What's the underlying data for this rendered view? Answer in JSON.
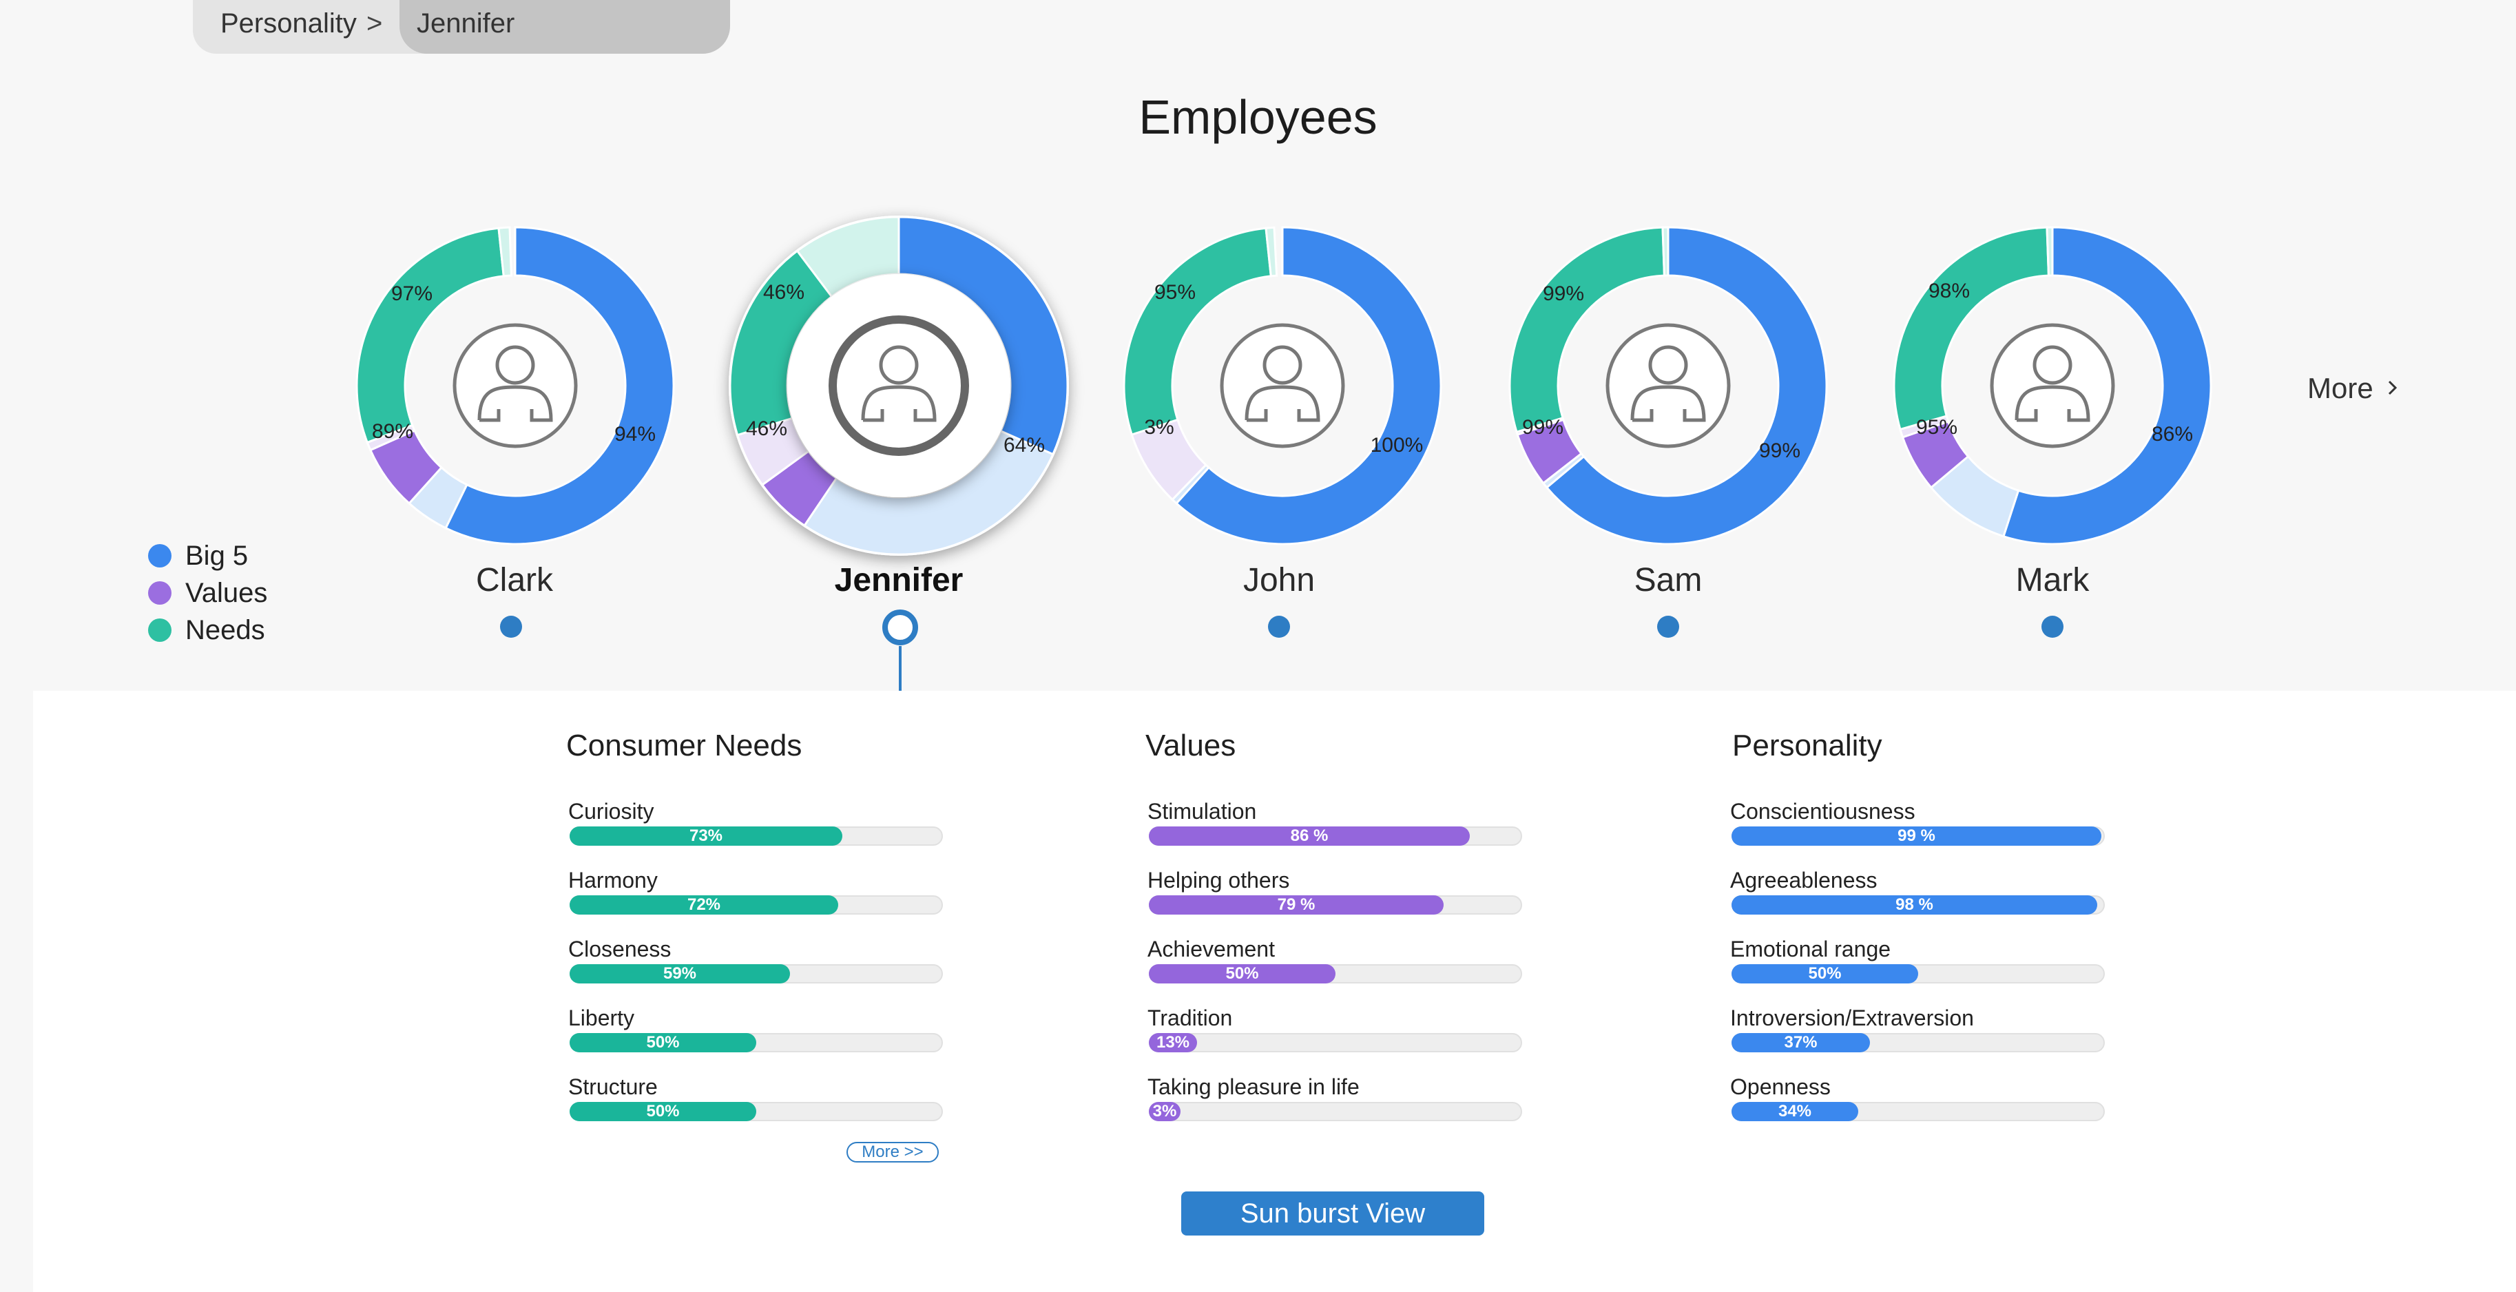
{
  "breadcrumb": {
    "items": [
      "Personality",
      "Jennifer"
    ],
    "separator": ">"
  },
  "page_title": "Employees",
  "legend": [
    {
      "label": "Big 5",
      "color": "#3b88ee"
    },
    {
      "label": "Values",
      "color": "#9b6ee0"
    },
    {
      "label": "Needs",
      "color": "#2ec0a2"
    }
  ],
  "colors": {
    "big5": "#3b88ee",
    "big5_light": "#d6e8fb",
    "values": "#9b6ee0",
    "values_light": "#ece4f8",
    "needs": "#2ec0a2",
    "needs_light": "#d2f3ec",
    "accent": "#2e7dc4"
  },
  "employees": [
    {
      "name": "Clark",
      "selected": false,
      "big5": "94%",
      "values": "89%",
      "needs": "97%"
    },
    {
      "name": "Jennifer",
      "selected": true,
      "big5": "64%",
      "values": "46%",
      "needs": "46%"
    },
    {
      "name": "John",
      "selected": false,
      "big5": "100%",
      "values": "3%",
      "needs": "95%"
    },
    {
      "name": "Sam",
      "selected": false,
      "big5": "99%",
      "values": "99%",
      "needs": "99%"
    },
    {
      "name": "Mark",
      "selected": false,
      "big5": "86%",
      "values": "95%",
      "needs": "98%"
    }
  ],
  "more_label": "More",
  "details": {
    "needs": {
      "title": "Consumer Needs",
      "items": [
        {
          "label": "Curiosity",
          "value": 0.73,
          "text": "73%"
        },
        {
          "label": "Harmony",
          "value": 0.72,
          "text": "72%"
        },
        {
          "label": "Closeness",
          "value": 0.59,
          "text": "59%"
        },
        {
          "label": "Liberty",
          "value": 0.5,
          "text": "50%"
        },
        {
          "label": "Structure",
          "value": 0.5,
          "text": "50%"
        }
      ],
      "more_button": "More >>"
    },
    "values": {
      "title": "Values",
      "items": [
        {
          "label": "Stimulation",
          "value": 0.86,
          "text": "86 %"
        },
        {
          "label": "Helping others",
          "value": 0.79,
          "text": "79 %"
        },
        {
          "label": "Achievement",
          "value": 0.5,
          "text": "50%"
        },
        {
          "label": "Tradition",
          "value": 0.13,
          "text": "13%"
        },
        {
          "label": "Taking pleasure in life",
          "value": 0.03,
          "text": "3%"
        }
      ]
    },
    "personality": {
      "title": "Personality",
      "items": [
        {
          "label": "Conscientiousness",
          "value": 0.99,
          "text": "99 %"
        },
        {
          "label": "Agreeableness",
          "value": 0.98,
          "text": "98 %"
        },
        {
          "label": "Emotional range",
          "value": 0.5,
          "text": "50%"
        },
        {
          "label": "Introversion/Extraversion",
          "value": 0.37,
          "text": "37%"
        },
        {
          "label": "Openness",
          "value": 0.34,
          "text": "34%"
        }
      ]
    }
  },
  "sunburst_button": "Sun burst View"
}
